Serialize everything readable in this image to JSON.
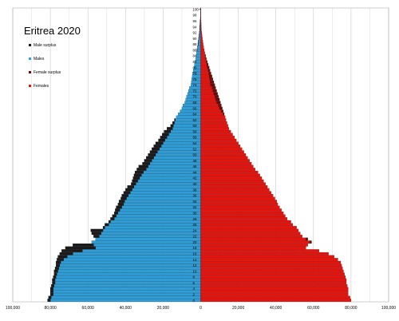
{
  "chart_data": {
    "type": "bar",
    "orientation": "horizontal-population-pyramid",
    "title": "Eritrea 2020",
    "legend": [
      {
        "label": "Male surplus",
        "color": "#1a1a1a"
      },
      {
        "label": "Males",
        "color": "#2e9ed9"
      },
      {
        "label": "Female surplus",
        "color": "#6b0a0a"
      },
      {
        "label": "Females",
        "color": "#e8120c"
      }
    ],
    "legend_position": "top-left",
    "grid": true,
    "xlim": [
      -100000,
      100000
    ],
    "x_ticks": [
      "100,000",
      "80,000",
      "60,000",
      "40,000",
      "20,000",
      "0",
      "20,000",
      "40,000",
      "60,000",
      "80,000",
      "100,000"
    ],
    "age_labels": [
      "0",
      "2",
      "4",
      "6",
      "8",
      "10",
      "12",
      "14",
      "16",
      "18",
      "20",
      "22",
      "24",
      "26",
      "28",
      "30",
      "32",
      "34",
      "36",
      "38",
      "40",
      "42",
      "44",
      "46",
      "48",
      "50",
      "52",
      "54",
      "56",
      "58",
      "60",
      "62",
      "64",
      "66",
      "68",
      "70",
      "72",
      "74",
      "76",
      "78",
      "80",
      "82",
      "84",
      "86",
      "88",
      "90",
      "92",
      "94",
      "96",
      "98",
      "100+"
    ],
    "ages": [
      0,
      1,
      2,
      3,
      4,
      5,
      6,
      7,
      8,
      9,
      10,
      11,
      12,
      13,
      14,
      15,
      16,
      17,
      18,
      19,
      20,
      21,
      22,
      23,
      24,
      25,
      26,
      27,
      28,
      29,
      30,
      31,
      32,
      33,
      34,
      35,
      36,
      37,
      38,
      39,
      40,
      41,
      42,
      43,
      44,
      45,
      46,
      47,
      48,
      49,
      50,
      51,
      52,
      53,
      54,
      55,
      56,
      57,
      58,
      59,
      60,
      61,
      62,
      63,
      64,
      65,
      66,
      67,
      68,
      69,
      70,
      71,
      72,
      73,
      74,
      75,
      76,
      77,
      78,
      79,
      80,
      81,
      82,
      83,
      84,
      85,
      86,
      87,
      88,
      89,
      90,
      91,
      92,
      93,
      94,
      95,
      96,
      97,
      98,
      99,
      100
    ],
    "series": [
      {
        "name": "Males",
        "values": [
          81500,
          81000,
          80000,
          80000,
          80000,
          79500,
          79000,
          79000,
          78500,
          78000,
          78000,
          77500,
          77000,
          77000,
          76500,
          76000,
          75000,
          74000,
          72000,
          68000,
          58000,
          56000,
          57000,
          58000,
          58500,
          52000,
          51000,
          49000,
          48000,
          47000,
          46000,
          45500,
          45000,
          44000,
          43500,
          42500,
          42000,
          41000,
          40000,
          39000,
          37000,
          36500,
          36000,
          35500,
          35000,
          34000,
          33000,
          31000,
          30000,
          29000,
          28000,
          27000,
          26000,
          25000,
          24000,
          22500,
          21500,
          20500,
          19500,
          18000,
          16000,
          15000,
          14000,
          13000,
          12000,
          11000,
          10000,
          9500,
          8500,
          8000,
          7500,
          7000,
          6500,
          6000,
          5200,
          5000,
          4800,
          4500,
          4300,
          4000,
          3600,
          3300,
          3000,
          2700,
          2400,
          2200,
          2000,
          1700,
          1500,
          1300,
          1100,
          900,
          700,
          600,
          500,
          400,
          300,
          200,
          150,
          100,
          80
        ]
      },
      {
        "name": "Females",
        "values": [
          80000,
          79500,
          78500,
          78500,
          78500,
          78000,
          77500,
          77500,
          77000,
          76500,
          76000,
          75500,
          75000,
          74500,
          73000,
          71000,
          68000,
          63000,
          56000,
          57000,
          59000,
          57000,
          54000,
          53000,
          52000,
          51000,
          49000,
          48000,
          46000,
          45000,
          44000,
          43000,
          42000,
          41000,
          40500,
          39500,
          38500,
          37500,
          36500,
          35500,
          34500,
          33500,
          32500,
          31500,
          30500,
          29000,
          28000,
          27000,
          26000,
          25000,
          24000,
          23000,
          22000,
          21000,
          20000,
          19000,
          18000,
          17000,
          16000,
          15000,
          14500,
          14000,
          13500,
          13000,
          12500,
          12000,
          11500,
          11000,
          10500,
          10000,
          9500,
          9000,
          8500,
          8000,
          7500,
          7000,
          6500,
          6000,
          5500,
          5000,
          4500,
          4000,
          3500,
          3000,
          2600,
          2200,
          1900,
          1600,
          1300,
          1100,
          900,
          700,
          550,
          400,
          300,
          250,
          200,
          150,
          100,
          80,
          60
        ]
      }
    ]
  }
}
